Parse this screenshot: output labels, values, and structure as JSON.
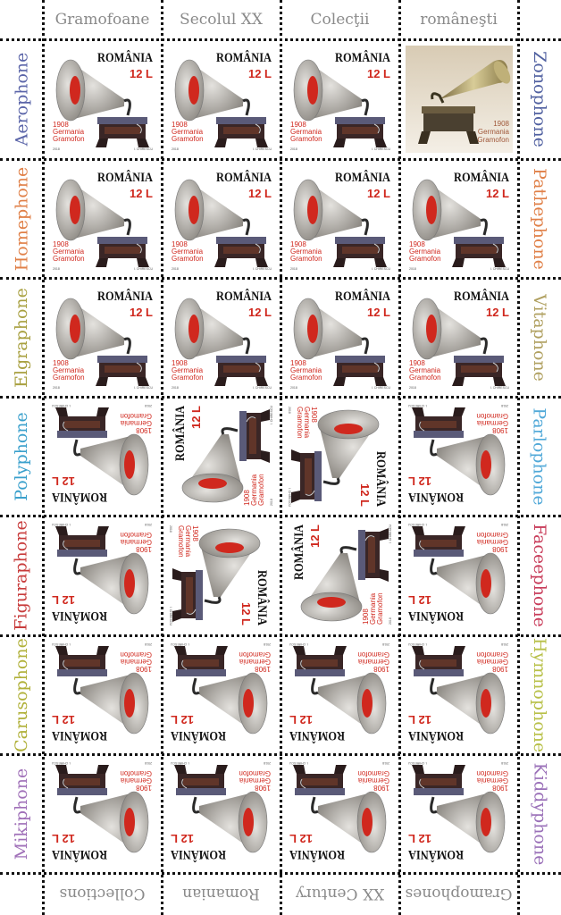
{
  "header_labels": [
    "Gramofoane",
    "Secolul XX",
    "Colecţii",
    "româneşti"
  ],
  "footer_labels": [
    "Collections",
    "Romanian",
    "XX Century",
    "Gramophones"
  ],
  "left_labels": [
    {
      "text": "Aerophone",
      "color": "#5a64a8"
    },
    {
      "text": "Homephone",
      "color": "#e08048"
    },
    {
      "text": "Elgraphone",
      "color": "#a8a040"
    },
    {
      "text": "Polyphone",
      "color": "#3aa0cc"
    },
    {
      "text": "Figuraphone",
      "color": "#c83c3c"
    },
    {
      "text": "Carusophone",
      "color": "#b0b038"
    },
    {
      "text": "Mikiphone",
      "color": "#a070b8"
    }
  ],
  "right_labels": [
    {
      "text": "Zonophone",
      "color": "#5060a0"
    },
    {
      "text": "Pathephone",
      "color": "#e08048"
    },
    {
      "text": "Vitaphone",
      "color": "#b0a060"
    },
    {
      "text": "Parlophone",
      "color": "#50a8d8"
    },
    {
      "text": "Faceephone",
      "color": "#c83c5a"
    },
    {
      "text": "Hymnophone",
      "color": "#b8c048"
    },
    {
      "text": "Kiddyphone",
      "color": "#9a70b8"
    }
  ],
  "stamp": {
    "country": "ROMÂNIA",
    "value": "12 L",
    "year": "1908",
    "line1": "Germania",
    "line2": "Gramofon",
    "issue_year": "2018",
    "designer": "I. CHIRESCU"
  },
  "colors": {
    "accent_red": "#d0281e",
    "perforation": "#111111",
    "label_gray": "#8a8a8a"
  }
}
